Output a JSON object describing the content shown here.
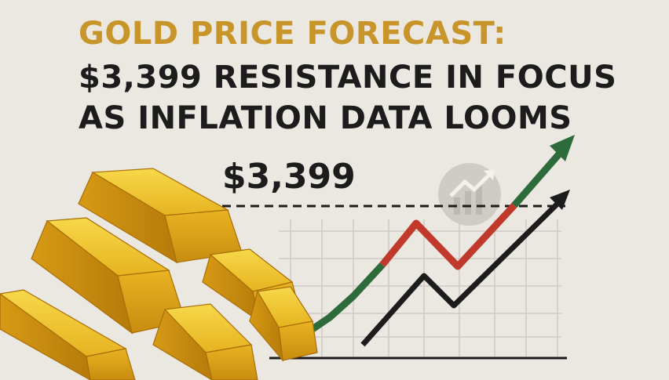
{
  "headline": {
    "line1": "GOLD PRICE FORECAST:",
    "line2": "$3,399 RESISTANCE IN FOCUS",
    "line3": "AS INFLATION DATA LOOMS"
  },
  "price_label": "$3,399",
  "colors": {
    "gold_title": "#c8952a",
    "dark_text": "#1c1c1c",
    "background": "#ebe7e1",
    "arrow_green": "#2e6b3a",
    "arrow_red": "#c0392b",
    "arrow_black": "#1c1c1c",
    "gold_bar": "#e8b923"
  },
  "icons": [
    "gold-bars-illustration",
    "trend-up-arrow-icon",
    "chart-badge-icon"
  ]
}
